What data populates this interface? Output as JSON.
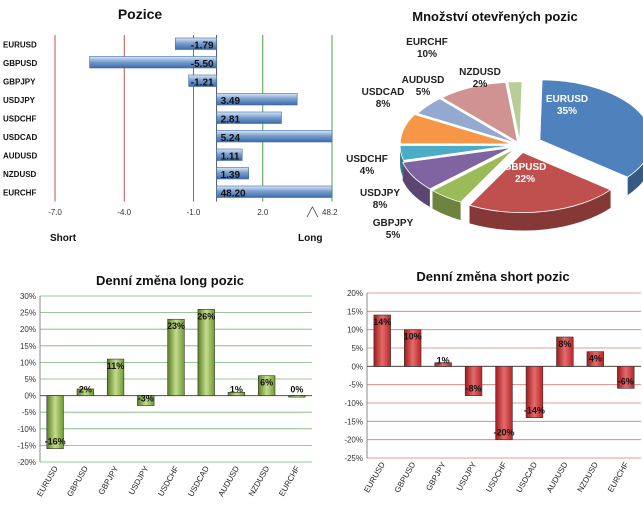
{
  "chart_data": [
    {
      "type": "bar",
      "title": "Pozice",
      "orientation": "horizontal",
      "categories": [
        "EURUSD",
        "GBPUSD",
        "GBPJPY",
        "USDJPY",
        "USDCHF",
        "USDCAD",
        "AUDUSD",
        "NZDUSD",
        "EURCHF"
      ],
      "values": [
        -1.79,
        -5.5,
        -1.21,
        3.49,
        2.81,
        5.24,
        1.11,
        1.39,
        48.2
      ],
      "value_labels": [
        "-1.79",
        "-5.50",
        "-1.21",
        "3.49",
        "2.81",
        "5.24",
        "1.11",
        "1.39",
        "48.20"
      ],
      "xlim": [
        -7.0,
        5.0
      ],
      "x_ticks": [
        "-7.0",
        "-4.0",
        "-1.0",
        "2.0"
      ],
      "axis_break_label": "48.2",
      "left_label": "Short",
      "right_label": "Long",
      "bar_color": "#5b86c0"
    },
    {
      "type": "pie",
      "title": "Množství otevřených pozic",
      "slices": [
        {
          "label": "EURUSD",
          "percent": "35%",
          "value": 35,
          "color": "#4f81bd"
        },
        {
          "label": "GBPUSD",
          "percent": "22%",
          "value": 22,
          "color": "#c0504d"
        },
        {
          "label": "GBPJPY",
          "percent": "5%",
          "value": 5,
          "color": "#9bbb59"
        },
        {
          "label": "USDJPY",
          "percent": "8%",
          "value": 8,
          "color": "#8064a2"
        },
        {
          "label": "USDCHF",
          "percent": "4%",
          "value": 4,
          "color": "#4bacc6"
        },
        {
          "label": "USDCAD",
          "percent": "8%",
          "value": 8,
          "color": "#f79646"
        },
        {
          "label": "AUDUSD",
          "percent": "5%",
          "value": 5,
          "color": "#93a9cf"
        },
        {
          "label": "EURCHF",
          "percent": "10%",
          "value": 10,
          "color": "#d19392"
        },
        {
          "label": "NZDUSD",
          "percent": "2%",
          "value": 2,
          "color": "#b9cd96"
        }
      ]
    },
    {
      "type": "bar",
      "title": "Denní změna long pozic",
      "categories": [
        "EURUSD",
        "GBPUSD",
        "GBPJPY",
        "USDJPY",
        "USDCHF",
        "USDCAD",
        "AUDUSD",
        "NZDUSD",
        "EURCHF"
      ],
      "values": [
        -16,
        2,
        11,
        -3,
        23,
        26,
        1,
        6,
        0
      ],
      "value_labels": [
        "-16%",
        "2%",
        "11%",
        "-3%",
        "23%",
        "26%",
        "1%",
        "6%",
        "0%"
      ],
      "ylim": [
        -20,
        30
      ],
      "y_ticks": [
        "-20%",
        "-15%",
        "-10%",
        "-5%",
        "0%",
        "5%",
        "10%",
        "15%",
        "20%",
        "25%",
        "30%"
      ],
      "bar_color": "#6f9a2e",
      "grid_color": "#4aa04a"
    },
    {
      "type": "bar",
      "title": "Denní změna short pozic",
      "categories": [
        "EURUSD",
        "GBPUSD",
        "GBPJPY",
        "USDJPY",
        "USDCHF",
        "USDCAD",
        "AUDUSD",
        "NZDUSD",
        "EURCHF"
      ],
      "values": [
        14,
        10,
        1,
        -8,
        -20,
        -14,
        8,
        4,
        -6
      ],
      "value_labels": [
        "14%",
        "10%",
        "1%",
        "-8%",
        "-20%",
        "-14%",
        "8%",
        "4%",
        "-6%"
      ],
      "ylim": [
        -25,
        20
      ],
      "y_ticks": [
        "-25%",
        "-20%",
        "-15%",
        "-10%",
        "-5%",
        "0%",
        "5%",
        "10%",
        "15%",
        "20%"
      ],
      "bar_color": "#c0282a",
      "grid_color": "#c0504d"
    }
  ]
}
